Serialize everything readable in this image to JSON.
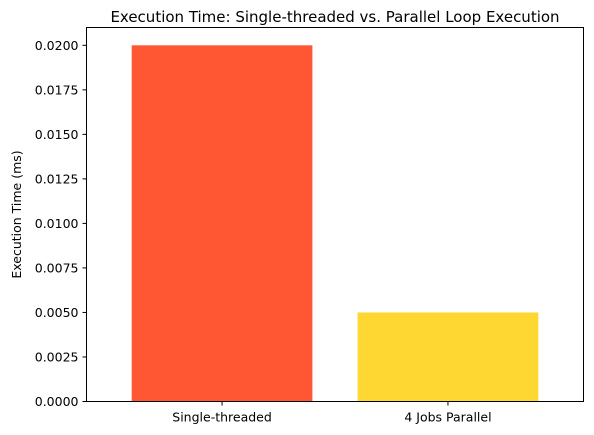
{
  "chart_data": {
    "type": "bar",
    "title": "Execution Time: Single-threaded vs. Parallel Loop Execution",
    "xlabel": "",
    "ylabel": "Execution Time (ms)",
    "categories": [
      "Single-threaded",
      "4 Jobs Parallel"
    ],
    "values": [
      0.02,
      0.005
    ],
    "colors": [
      "#ff5733",
      "#ffd733"
    ],
    "ylim": [
      0,
      0.021
    ],
    "yticks": [
      0.0,
      0.0025,
      0.005,
      0.0075,
      0.01,
      0.0125,
      0.015,
      0.0175,
      0.02
    ],
    "ytick_labels": [
      "0.0000",
      "0.0025",
      "0.0050",
      "0.0075",
      "0.0100",
      "0.0125",
      "0.0150",
      "0.0175",
      "0.0200"
    ],
    "grid": false,
    "legend": "none"
  }
}
